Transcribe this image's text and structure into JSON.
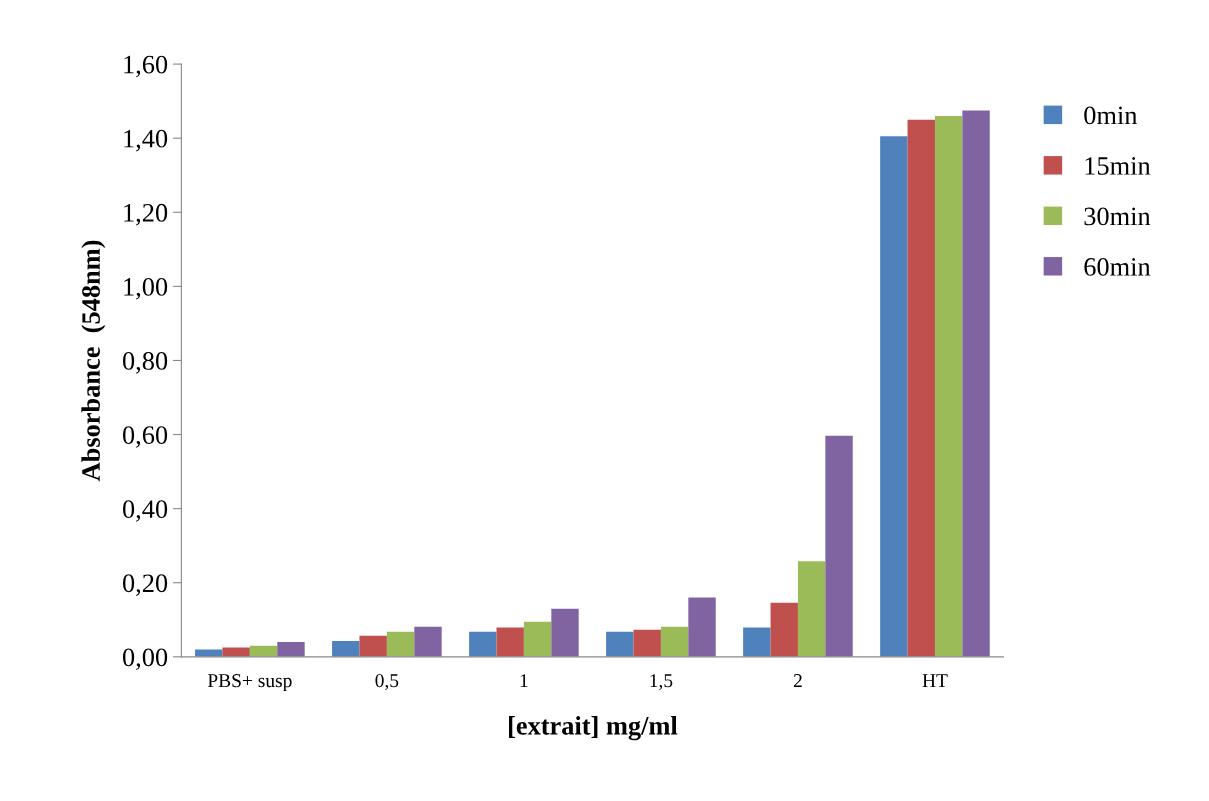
{
  "chart_data": {
    "type": "bar",
    "xlabel": "[extrait] mg/ml",
    "ylabel": "Absorbance  (548nm)",
    "categories": [
      "PBS+ susp",
      "0,5",
      "1",
      "1,5",
      "2",
      "HT"
    ],
    "series": [
      {
        "name": "0min",
        "color": "#4f81bd",
        "values": [
          0.02,
          0.043,
          0.068,
          0.068,
          0.079,
          1.405
        ]
      },
      {
        "name": "15min",
        "color": "#c0504d",
        "values": [
          0.025,
          0.057,
          0.079,
          0.073,
          0.146,
          1.45
        ]
      },
      {
        "name": "30min",
        "color": "#9bbb59",
        "values": [
          0.03,
          0.068,
          0.095,
          0.081,
          0.258,
          1.46
        ]
      },
      {
        "name": "60min",
        "color": "#8064a2",
        "values": [
          0.04,
          0.081,
          0.13,
          0.16,
          0.597,
          1.475
        ]
      }
    ],
    "ylim": [
      0,
      1.6
    ],
    "yticks": [
      {
        "value": 0,
        "label": "0,00"
      },
      {
        "value": 0.2,
        "label": "0,20"
      },
      {
        "value": 0.4,
        "label": "0,40"
      },
      {
        "value": 0.6,
        "label": "0,60"
      },
      {
        "value": 0.8,
        "label": "0,80"
      },
      {
        "value": 1.0,
        "label": "1,00"
      },
      {
        "value": 1.2,
        "label": "1,20"
      },
      {
        "value": 1.4,
        "label": "1,40"
      },
      {
        "value": 1.6,
        "label": "1,60"
      }
    ],
    "grid": false,
    "legend": "right"
  }
}
